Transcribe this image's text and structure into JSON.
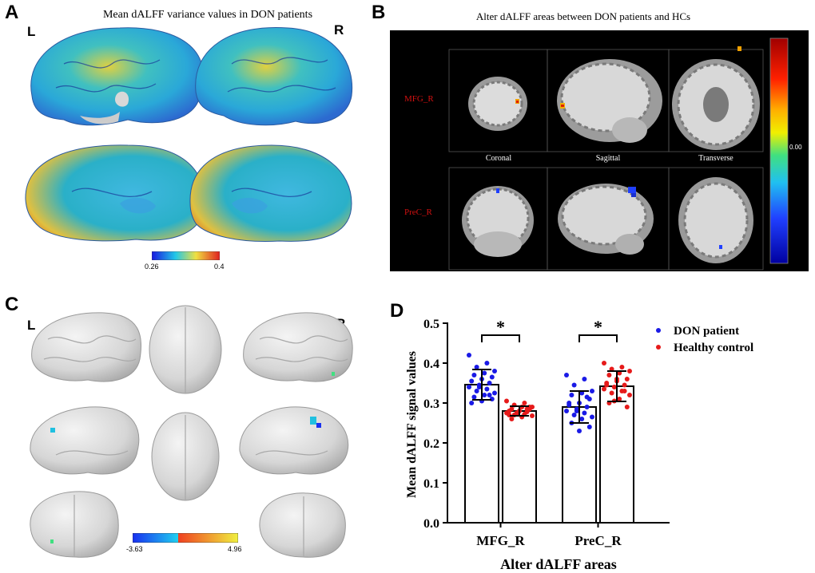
{
  "panelA": {
    "letter": "A",
    "title": "Mean dALFF variance values in DON patients",
    "left_label": "L",
    "right_label": "R",
    "colorbar": {
      "min_label": "0.26",
      "max_label": "0.4",
      "colors": [
        "#1818e0",
        "#22c8e8",
        "#f0e040",
        "#e02020"
      ]
    }
  },
  "panelB": {
    "letter": "B",
    "title": "Alter dALFF  areas between DON patients and HCs",
    "rows": [
      "MFG_R",
      "PreC_R"
    ],
    "views": [
      "Coronal",
      "Sagittal",
      "Transverse"
    ],
    "colorbar": {
      "mid_label": "0.00",
      "colors": [
        "#a00000",
        "#ff2000",
        "#ffb000",
        "#f0f000",
        "#40e080",
        "#20c0f0",
        "#2040ff",
        "#0000a0"
      ]
    }
  },
  "panelC": {
    "letter": "C",
    "left_label": "L",
    "right_label": "R",
    "colorbar": {
      "min_label": "-3.63",
      "max_label": "4.96",
      "colors": [
        "#1830f0",
        "#20d0f0",
        "#f04020",
        "#f0f040"
      ]
    }
  },
  "panelD": {
    "letter": "D",
    "chart_data": {
      "type": "bar",
      "ylabel": "Mean dALFF signal values",
      "xlabel": "Alter dALFF areas",
      "categories": [
        "MFG_R",
        "PreC_R"
      ],
      "ylim": [
        0.0,
        0.5
      ],
      "yticks": [
        "0.0",
        "0.1",
        "0.2",
        "0.3",
        "0.4",
        "0.5"
      ],
      "legend": "top-right",
      "significance": [
        "*",
        "*"
      ],
      "series": [
        {
          "name": "DON patient",
          "color": "#1a1ae6",
          "values": [
            0.346,
            0.29
          ],
          "sd": [
            0.038,
            0.04
          ],
          "points": [
            [
              0.42,
              0.4,
              0.39,
              0.38,
              0.375,
              0.37,
              0.365,
              0.36,
              0.355,
              0.35,
              0.345,
              0.34,
              0.335,
              0.33,
              0.325,
              0.32,
              0.315,
              0.31,
              0.305,
              0.3,
              0.32,
              0.34
            ],
            [
              0.37,
              0.36,
              0.345,
              0.33,
              0.325,
              0.32,
              0.31,
              0.3,
              0.295,
              0.29,
              0.285,
              0.28,
              0.275,
              0.27,
              0.265,
              0.26,
              0.25,
              0.24,
              0.23,
              0.3,
              0.315,
              0.28
            ]
          ]
        },
        {
          "name": "Healthy control",
          "color": "#e61a1a",
          "values": [
            0.28,
            0.342
          ],
          "sd": [
            0.012,
            0.038
          ],
          "points": [
            [
              0.305,
              0.3,
              0.295,
              0.29,
              0.29,
              0.285,
              0.285,
              0.28,
              0.28,
              0.278,
              0.275,
              0.275,
              0.272,
              0.27,
              0.268,
              0.265,
              0.26,
              0.29,
              0.28,
              0.27,
              0.285,
              0.275
            ],
            [
              0.4,
              0.39,
              0.385,
              0.38,
              0.375,
              0.37,
              0.36,
              0.355,
              0.35,
              0.345,
              0.34,
              0.335,
              0.33,
              0.325,
              0.32,
              0.31,
              0.3,
              0.29,
              0.36,
              0.345,
              0.33,
              0.305
            ]
          ]
        }
      ]
    }
  }
}
